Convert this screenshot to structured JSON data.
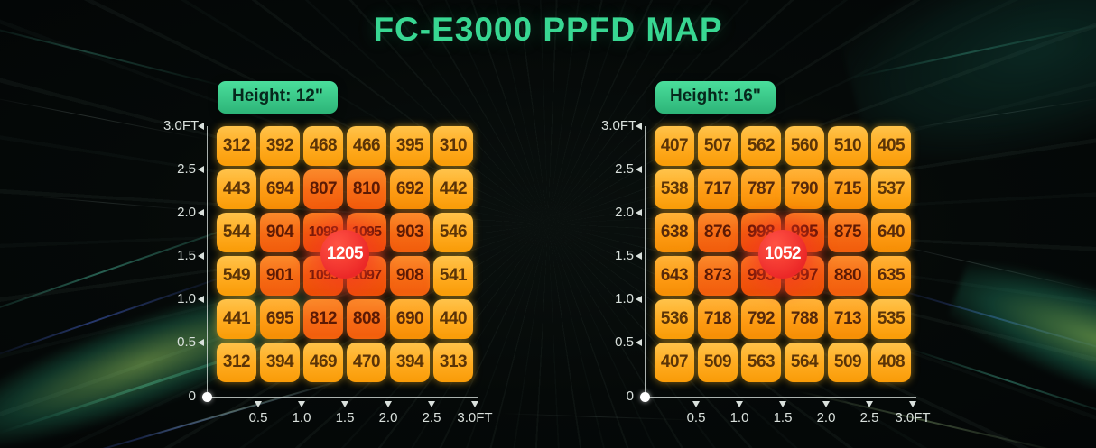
{
  "title": "FC-E3000 PPFD MAP",
  "axes": {
    "y_labels": [
      "3.0FT",
      "2.5",
      "2.0",
      "1.5",
      "1.0",
      "0.5",
      "0"
    ],
    "x_labels": [
      "0.5",
      "1.0",
      "1.5",
      "2.0",
      "2.5",
      "3.0FT"
    ]
  },
  "colors": {
    "background": "#050908",
    "title_green": "#38d792",
    "height_badge_green": "#3bd18c",
    "height_badge_text": "#06281c",
    "axis": "#d9e0dc",
    "peak_badge_red": "#e8252c",
    "peak_badge_text": "#ffffff",
    "cell_low_amber": "#ffab1f",
    "cell_mid_orange": "#fe9b13",
    "cell_high_orange": "#f66a14",
    "cell_hot_red_orange": "#f25a0e",
    "cell_text_dark": "#5b3407"
  },
  "chart_data": [
    {
      "type": "heatmap",
      "title": "Height: 12\"",
      "x_ticks": [
        0.5,
        1.0,
        1.5,
        2.0,
        2.5,
        3.0
      ],
      "y_ticks": [
        3.0,
        2.5,
        2.0,
        1.5,
        1.0,
        0.5,
        0
      ],
      "units_axis": "FT",
      "values": [
        [
          312,
          392,
          468,
          466,
          395,
          310
        ],
        [
          443,
          694,
          807,
          810,
          692,
          442
        ],
        [
          544,
          904,
          1098,
          1095,
          903,
          546
        ],
        [
          549,
          901,
          1093,
          1097,
          908,
          541
        ],
        [
          441,
          695,
          812,
          808,
          690,
          440
        ],
        [
          312,
          394,
          469,
          470,
          394,
          313
        ]
      ],
      "peak": 1205
    },
    {
      "type": "heatmap",
      "title": "Height: 16\"",
      "x_ticks": [
        0.5,
        1.0,
        1.5,
        2.0,
        2.5,
        3.0
      ],
      "y_ticks": [
        3.0,
        2.5,
        2.0,
        1.5,
        1.0,
        0.5,
        0
      ],
      "units_axis": "FT",
      "values": [
        [
          407,
          507,
          562,
          560,
          510,
          405
        ],
        [
          538,
          717,
          787,
          790,
          715,
          537
        ],
        [
          638,
          876,
          998,
          995,
          875,
          640
        ],
        [
          643,
          873,
          993,
          997,
          880,
          635
        ],
        [
          536,
          718,
          792,
          788,
          713,
          535
        ],
        [
          407,
          509,
          563,
          564,
          509,
          408
        ]
      ],
      "peak": 1052
    }
  ]
}
